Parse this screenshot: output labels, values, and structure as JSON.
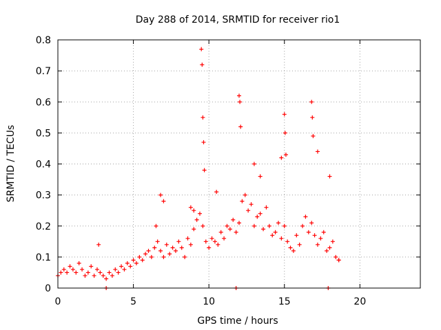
{
  "chart_data": {
    "type": "scatter",
    "title": "Day 288 of 2014, SRMTID for receiver rio1",
    "xlabel": "GPS time / hours",
    "ylabel": "SRMTID / TECUs",
    "xlim": [
      0,
      24
    ],
    "ylim": [
      0,
      0.8
    ],
    "x_ticks": [
      0,
      5,
      10,
      15,
      20
    ],
    "x_tick_labels": [
      "0",
      "5",
      "10",
      "15",
      "20"
    ],
    "y_ticks": [
      0,
      0.1,
      0.2,
      0.3,
      0.4,
      0.5,
      0.6,
      0.7,
      0.8
    ],
    "y_tick_labels": [
      "0",
      "0.1",
      "0.2",
      "0.3",
      "0.4",
      "0.5",
      "0.6",
      "0.7",
      "0.8"
    ],
    "grid": true,
    "marker": "plus",
    "marker_color": "#ff0000",
    "series": [
      {
        "name": "rio1",
        "x": [
          0.0,
          0.2,
          0.4,
          0.6,
          0.8,
          1.0,
          1.2,
          1.4,
          1.6,
          1.8,
          2.0,
          2.2,
          2.4,
          2.6,
          2.8,
          3.0,
          3.2,
          3.4,
          3.6,
          3.8,
          4.0,
          4.2,
          4.4,
          4.6,
          4.8,
          5.0,
          5.2,
          5.4,
          5.6,
          5.8,
          6.0,
          6.2,
          6.4,
          6.6,
          6.8,
          7.0,
          7.2,
          7.4,
          7.6,
          7.8,
          8.0,
          8.2,
          8.4,
          8.6,
          8.8,
          9.0,
          9.2,
          9.4,
          9.6,
          9.8,
          10.0,
          10.2,
          10.4,
          10.6,
          10.8,
          11.0,
          11.2,
          11.4,
          11.6,
          11.8,
          12.0,
          12.2,
          12.4,
          12.6,
          12.8,
          13.0,
          13.2,
          13.4,
          13.6,
          13.8,
          14.0,
          14.2,
          14.4,
          14.6,
          14.8,
          15.0,
          15.2,
          15.4,
          15.6,
          15.8,
          16.0,
          16.2,
          16.4,
          16.6,
          16.8,
          17.0,
          17.2,
          17.4,
          17.6,
          17.8,
          18.0,
          18.2,
          18.4,
          18.6,
          9.5,
          9.55,
          9.6,
          9.65,
          9.7,
          12.0,
          12.05,
          12.1,
          15.0,
          15.05,
          15.1,
          16.8,
          16.85,
          16.9,
          6.8,
          7.0,
          8.8,
          9.0,
          13.0,
          14.8,
          3.2,
          17.9,
          11.8,
          2.7,
          6.5,
          10.5,
          13.4,
          17.2,
          18.0,
          18.6
        ],
        "y": [
          0.04,
          0.05,
          0.06,
          0.05,
          0.07,
          0.06,
          0.05,
          0.08,
          0.06,
          0.04,
          0.05,
          0.07,
          0.04,
          0.06,
          0.05,
          0.04,
          0.03,
          0.05,
          0.04,
          0.06,
          0.05,
          0.07,
          0.06,
          0.08,
          0.07,
          0.09,
          0.08,
          0.1,
          0.09,
          0.11,
          0.12,
          0.1,
          0.13,
          0.15,
          0.12,
          0.1,
          0.14,
          0.11,
          0.13,
          0.12,
          0.15,
          0.13,
          0.1,
          0.16,
          0.14,
          0.19,
          0.22,
          0.24,
          0.2,
          0.15,
          0.13,
          0.16,
          0.15,
          0.14,
          0.18,
          0.16,
          0.2,
          0.19,
          0.22,
          0.18,
          0.21,
          0.28,
          0.3,
          0.25,
          0.27,
          0.2,
          0.23,
          0.24,
          0.19,
          0.26,
          0.2,
          0.17,
          0.18,
          0.21,
          0.16,
          0.2,
          0.15,
          0.13,
          0.12,
          0.17,
          0.14,
          0.2,
          0.23,
          0.18,
          0.21,
          0.17,
          0.14,
          0.16,
          0.18,
          0.12,
          0.13,
          0.15,
          0.1,
          0.09,
          0.77,
          0.72,
          0.55,
          0.47,
          0.38,
          0.62,
          0.6,
          0.52,
          0.56,
          0.5,
          0.43,
          0.6,
          0.55,
          0.49,
          0.3,
          0.28,
          0.26,
          0.25,
          0.4,
          0.42,
          0.0,
          0.0,
          0.0,
          0.14,
          0.2,
          0.31,
          0.36,
          0.44,
          0.36,
          0.09
        ]
      }
    ]
  }
}
